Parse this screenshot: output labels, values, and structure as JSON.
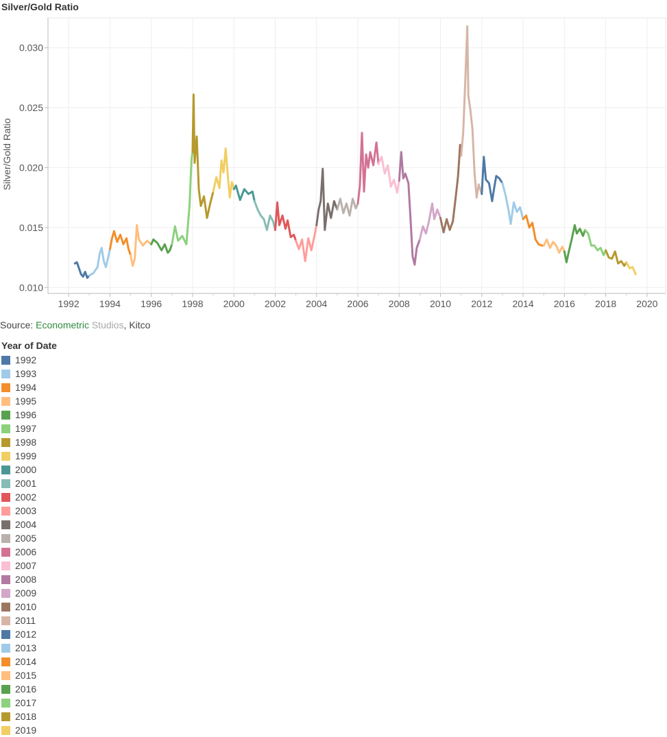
{
  "chart_title": "Silver/Gold Ratio",
  "source": {
    "prefix": "Source: ",
    "part1": "Econometric",
    "part2": " Studios",
    "part3": ", Kitco"
  },
  "legend": {
    "title": "Year of Date",
    "items": [
      {
        "label": "1992",
        "color": "#4e79a7"
      },
      {
        "label": "1993",
        "color": "#a0cbe8"
      },
      {
        "label": "1994",
        "color": "#f28e2b"
      },
      {
        "label": "1995",
        "color": "#ffbe7d"
      },
      {
        "label": "1996",
        "color": "#59a14f"
      },
      {
        "label": "1997",
        "color": "#8cd17d"
      },
      {
        "label": "1998",
        "color": "#b6992d"
      },
      {
        "label": "1999",
        "color": "#f1ce63"
      },
      {
        "label": "2000",
        "color": "#499894"
      },
      {
        "label": "2001",
        "color": "#86bcb6"
      },
      {
        "label": "2002",
        "color": "#e15759"
      },
      {
        "label": "2003",
        "color": "#ff9d9a"
      },
      {
        "label": "2004",
        "color": "#79706e"
      },
      {
        "label": "2005",
        "color": "#bab0ac"
      },
      {
        "label": "2006",
        "color": "#d37295"
      },
      {
        "label": "2007",
        "color": "#fabfd2"
      },
      {
        "label": "2008",
        "color": "#b07aa1"
      },
      {
        "label": "2009",
        "color": "#d4a6c8"
      },
      {
        "label": "2010",
        "color": "#9d7660"
      },
      {
        "label": "2011",
        "color": "#d7b5a6"
      },
      {
        "label": "2012",
        "color": "#4e79a7"
      },
      {
        "label": "2013",
        "color": "#a0cbe8"
      },
      {
        "label": "2014",
        "color": "#f28e2b"
      },
      {
        "label": "2015",
        "color": "#ffbe7d"
      },
      {
        "label": "2016",
        "color": "#59a14f"
      },
      {
        "label": "2017",
        "color": "#8cd17d"
      },
      {
        "label": "2018",
        "color": "#b6992d"
      },
      {
        "label": "2019",
        "color": "#f1ce63"
      }
    ]
  },
  "chart_data": {
    "type": "line",
    "title": "",
    "xlabel": "",
    "ylabel": "Silver/Gold Ratio",
    "xlim": [
      1991.0,
      2020.9
    ],
    "ylim": [
      0.0095,
      0.0325
    ],
    "x_ticks": [
      "1992",
      "1994",
      "1996",
      "1998",
      "2000",
      "2002",
      "2004",
      "2006",
      "2008",
      "2010",
      "2012",
      "2014",
      "2016",
      "2018",
      "2020"
    ],
    "y_ticks": [
      "0.010",
      "0.015",
      "0.020",
      "0.025",
      "0.030"
    ],
    "grid": true,
    "legend_position": "below",
    "series": [
      {
        "name": "1992",
        "x": [
          1992.3,
          1992.4,
          1992.5,
          1992.6,
          1992.7,
          1992.8,
          1992.9,
          1993.0
        ],
        "y": [
          0.012,
          0.0121,
          0.0116,
          0.0111,
          0.0109,
          0.0113,
          0.0108,
          0.011
        ]
      },
      {
        "name": "1993",
        "x": [
          1993.0,
          1993.2,
          1993.4,
          1993.5,
          1993.6,
          1993.7,
          1993.8,
          1993.9,
          1994.0
        ],
        "y": [
          0.011,
          0.0112,
          0.0117,
          0.0128,
          0.0133,
          0.0122,
          0.0117,
          0.0124,
          0.0132
        ]
      },
      {
        "name": "1994",
        "x": [
          1994.0,
          1994.1,
          1994.2,
          1994.35,
          1994.5,
          1994.65,
          1994.8,
          1994.9,
          1995.0
        ],
        "y": [
          0.0132,
          0.0141,
          0.0147,
          0.0138,
          0.0144,
          0.0136,
          0.0141,
          0.0132,
          0.0127
        ]
      },
      {
        "name": "1995",
        "x": [
          1995.0,
          1995.1,
          1995.2,
          1995.3,
          1995.4,
          1995.6,
          1995.8,
          1996.0
        ],
        "y": [
          0.0127,
          0.0118,
          0.0124,
          0.0152,
          0.014,
          0.0135,
          0.0139,
          0.0136
        ]
      },
      {
        "name": "1996",
        "x": [
          1996.0,
          1996.1,
          1996.3,
          1996.5,
          1996.65,
          1996.8,
          1996.9,
          1997.0
        ],
        "y": [
          0.0136,
          0.014,
          0.0137,
          0.0131,
          0.0136,
          0.0129,
          0.0131,
          0.0136
        ]
      },
      {
        "name": "1997",
        "x": [
          1997.0,
          1997.15,
          1997.3,
          1997.5,
          1997.7,
          1997.85,
          1997.95,
          1998.0
        ],
        "y": [
          0.0136,
          0.0151,
          0.0139,
          0.0143,
          0.0136,
          0.0168,
          0.0207,
          0.0213
        ]
      },
      {
        "name": "1998",
        "x": [
          1998.0,
          1998.05,
          1998.1,
          1998.2,
          1998.3,
          1998.4,
          1998.55,
          1998.7,
          1998.85,
          1999.0
        ],
        "y": [
          0.0213,
          0.0261,
          0.0204,
          0.0226,
          0.0182,
          0.0168,
          0.0176,
          0.0158,
          0.017,
          0.018
        ]
      },
      {
        "name": "1999",
        "x": [
          1999.0,
          1999.15,
          1999.3,
          1999.4,
          1999.5,
          1999.6,
          1999.7,
          1999.8,
          1999.9,
          2000.0
        ],
        "y": [
          0.018,
          0.0192,
          0.0183,
          0.0206,
          0.0196,
          0.0216,
          0.0194,
          0.0175,
          0.0188,
          0.0182
        ]
      },
      {
        "name": "2000",
        "x": [
          2000.0,
          2000.1,
          2000.3,
          2000.5,
          2000.7,
          2000.9,
          2001.0
        ],
        "y": [
          0.0182,
          0.0185,
          0.0173,
          0.0182,
          0.0178,
          0.018,
          0.0172
        ]
      },
      {
        "name": "2001",
        "x": [
          2001.0,
          2001.15,
          2001.3,
          2001.45,
          2001.6,
          2001.75,
          2001.9,
          2002.0
        ],
        "y": [
          0.0172,
          0.0165,
          0.016,
          0.0157,
          0.0148,
          0.016,
          0.0155,
          0.0148
        ]
      },
      {
        "name": "2002",
        "x": [
          2002.0,
          2002.1,
          2002.2,
          2002.35,
          2002.5,
          2002.6,
          2002.75,
          2002.9,
          2003.0
        ],
        "y": [
          0.0148,
          0.0171,
          0.0152,
          0.016,
          0.0149,
          0.0156,
          0.0142,
          0.0144,
          0.0139
        ]
      },
      {
        "name": "2003",
        "x": [
          2003.0,
          2003.15,
          2003.3,
          2003.45,
          2003.6,
          2003.75,
          2003.9,
          2004.0
        ],
        "y": [
          0.0139,
          0.0132,
          0.014,
          0.0122,
          0.0141,
          0.0131,
          0.0143,
          0.0152
        ]
      },
      {
        "name": "2004",
        "x": [
          2004.0,
          2004.1,
          2004.2,
          2004.3,
          2004.4,
          2004.55,
          2004.7,
          2004.85,
          2005.0
        ],
        "y": [
          0.0152,
          0.0165,
          0.0172,
          0.0199,
          0.0148,
          0.017,
          0.0158,
          0.0172,
          0.0165
        ]
      },
      {
        "name": "2005",
        "x": [
          2005.0,
          2005.15,
          2005.3,
          2005.45,
          2005.6,
          2005.75,
          2005.9,
          2006.0
        ],
        "y": [
          0.0165,
          0.0174,
          0.0162,
          0.017,
          0.016,
          0.0174,
          0.0166,
          0.017
        ]
      },
      {
        "name": "2006",
        "x": [
          2006.0,
          2006.1,
          2006.2,
          2006.3,
          2006.4,
          2006.5,
          2006.6,
          2006.75,
          2006.9,
          2007.0
        ],
        "y": [
          0.017,
          0.0185,
          0.0229,
          0.018,
          0.0211,
          0.02,
          0.0213,
          0.0202,
          0.0221,
          0.0203
        ]
      },
      {
        "name": "2007",
        "x": [
          2007.0,
          2007.15,
          2007.3,
          2007.45,
          2007.6,
          2007.75,
          2007.9,
          2008.0
        ],
        "y": [
          0.0203,
          0.0209,
          0.0195,
          0.0202,
          0.0184,
          0.019,
          0.0179,
          0.0189
        ]
      },
      {
        "name": "2008",
        "x": [
          2008.0,
          2008.1,
          2008.2,
          2008.3,
          2008.45,
          2008.55,
          2008.65,
          2008.75,
          2008.85,
          2009.0
        ],
        "y": [
          0.0189,
          0.0213,
          0.0191,
          0.0195,
          0.0187,
          0.0158,
          0.0126,
          0.0119,
          0.0133,
          0.014
        ]
      },
      {
        "name": "2009",
        "x": [
          2009.0,
          2009.15,
          2009.3,
          2009.45,
          2009.6,
          2009.7,
          2009.85,
          2010.0
        ],
        "y": [
          0.014,
          0.0151,
          0.0145,
          0.0156,
          0.017,
          0.0157,
          0.0165,
          0.0158
        ]
      },
      {
        "name": "2010",
        "x": [
          2010.0,
          2010.15,
          2010.3,
          2010.45,
          2010.6,
          2010.75,
          2010.85,
          2010.95,
          2011.0
        ],
        "y": [
          0.0158,
          0.0146,
          0.0157,
          0.0148,
          0.0155,
          0.0177,
          0.0193,
          0.0219,
          0.021
        ]
      },
      {
        "name": "2011",
        "x": [
          2011.0,
          2011.1,
          2011.2,
          2011.3,
          2011.35,
          2011.45,
          2011.55,
          2011.65,
          2011.75,
          2011.85,
          2012.0
        ],
        "y": [
          0.021,
          0.0229,
          0.0272,
          0.0318,
          0.026,
          0.0248,
          0.0232,
          0.0195,
          0.0175,
          0.0186,
          0.0178
        ]
      },
      {
        "name": "2012",
        "x": [
          2012.0,
          2012.1,
          2012.2,
          2012.35,
          2012.5,
          2012.6,
          2012.7,
          2012.85,
          2013.0
        ],
        "y": [
          0.0178,
          0.0209,
          0.019,
          0.0187,
          0.0172,
          0.0183,
          0.0193,
          0.0191,
          0.0187
        ]
      },
      {
        "name": "2013",
        "x": [
          2013.0,
          2013.15,
          2013.3,
          2013.4,
          2013.55,
          2013.7,
          2013.85,
          2014.0
        ],
        "y": [
          0.0187,
          0.0177,
          0.0164,
          0.0153,
          0.0171,
          0.0163,
          0.0167,
          0.0157
        ]
      },
      {
        "name": "2014",
        "x": [
          2014.0,
          2014.15,
          2014.3,
          2014.45,
          2014.6,
          2014.75,
          2014.9,
          2015.0
        ],
        "y": [
          0.0157,
          0.016,
          0.015,
          0.0154,
          0.014,
          0.0136,
          0.0135,
          0.0135
        ]
      },
      {
        "name": "2015",
        "x": [
          2015.0,
          2015.15,
          2015.3,
          2015.45,
          2015.6,
          2015.75,
          2015.9,
          2016.0
        ],
        "y": [
          0.0135,
          0.014,
          0.0133,
          0.0138,
          0.0135,
          0.0129,
          0.0134,
          0.013
        ]
      },
      {
        "name": "2016",
        "x": [
          2016.0,
          2016.1,
          2016.2,
          2016.35,
          2016.5,
          2016.6,
          2016.75,
          2016.9,
          2017.0
        ],
        "y": [
          0.013,
          0.0121,
          0.0129,
          0.014,
          0.0152,
          0.0145,
          0.0149,
          0.0143,
          0.0148
        ]
      },
      {
        "name": "2017",
        "x": [
          2017.0,
          2017.15,
          2017.3,
          2017.45,
          2017.6,
          2017.75,
          2017.9,
          2018.0
        ],
        "y": [
          0.0148,
          0.0145,
          0.0135,
          0.0135,
          0.0131,
          0.0133,
          0.0127,
          0.0131
        ]
      },
      {
        "name": "2018",
        "x": [
          2018.0,
          2018.15,
          2018.3,
          2018.45,
          2018.6,
          2018.75,
          2018.9,
          2019.0
        ],
        "y": [
          0.0131,
          0.0125,
          0.0124,
          0.013,
          0.012,
          0.0122,
          0.0118,
          0.0121
        ]
      },
      {
        "name": "2019",
        "x": [
          2019.0,
          2019.15,
          2019.3,
          2019.45
        ],
        "y": [
          0.0121,
          0.0116,
          0.0117,
          0.0111
        ]
      }
    ]
  }
}
